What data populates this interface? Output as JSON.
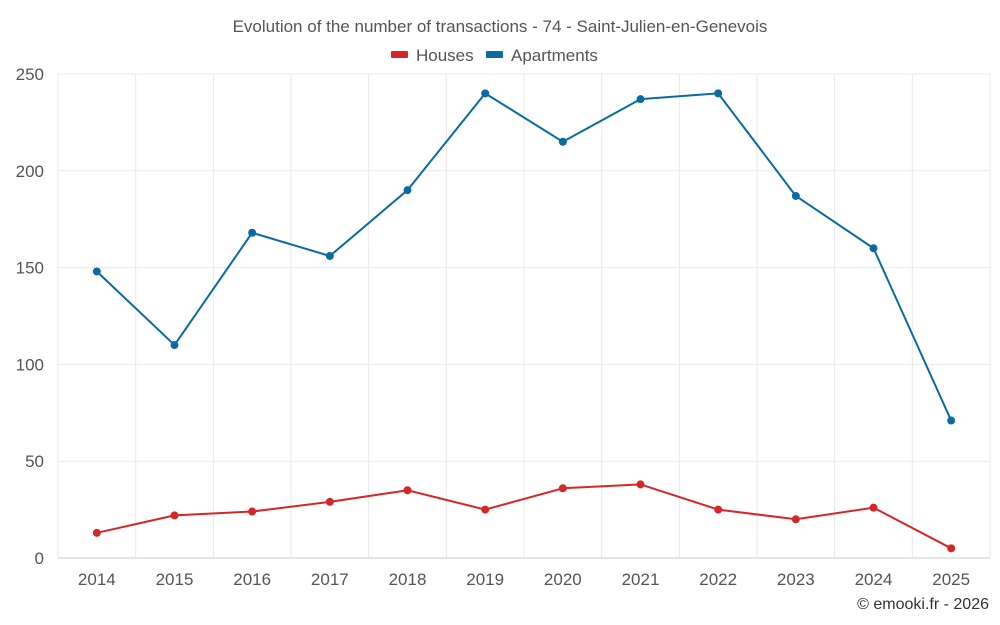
{
  "chart_data": {
    "type": "line",
    "title": "Evolution of the number of transactions - 74 - Saint-Julien-en-Genevois",
    "categories": [
      "2014",
      "2015",
      "2016",
      "2017",
      "2018",
      "2019",
      "2020",
      "2021",
      "2022",
      "2023",
      "2024",
      "2025"
    ],
    "series": [
      {
        "name": "Houses",
        "color": "#d62728",
        "values": [
          13,
          22,
          24,
          29,
          35,
          25,
          36,
          38,
          25,
          20,
          26,
          5
        ]
      },
      {
        "name": "Apartments",
        "color": "#0b6aa2",
        "values": [
          148,
          110,
          168,
          156,
          190,
          240,
          215,
          237,
          240,
          187,
          160,
          71
        ]
      }
    ],
    "ylim": [
      0,
      250
    ],
    "yticks": [
      0,
      50,
      100,
      150,
      200,
      250
    ],
    "grid": true,
    "legend_position": "top-center",
    "xlabel": "",
    "ylabel": ""
  },
  "credit": "© emooki.fr - 2026"
}
